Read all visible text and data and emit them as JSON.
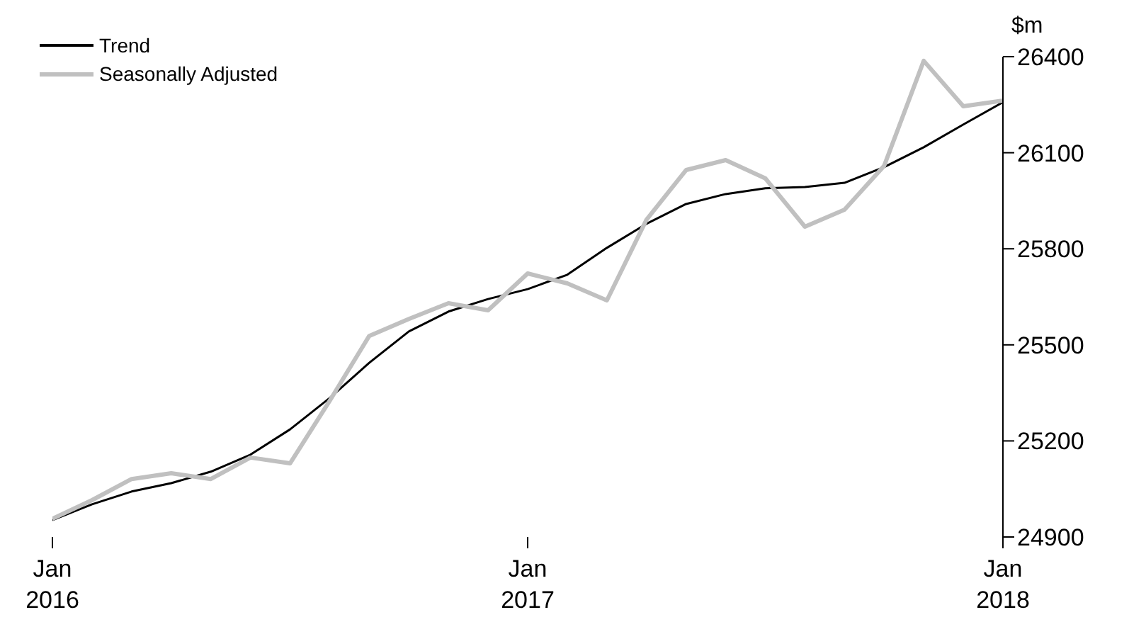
{
  "chart_data": {
    "type": "line",
    "ylabel": "$m",
    "x": [
      "2016-01",
      "2016-02",
      "2016-03",
      "2016-04",
      "2016-05",
      "2016-06",
      "2016-07",
      "2016-08",
      "2016-09",
      "2016-10",
      "2016-11",
      "2016-12",
      "2017-01",
      "2017-02",
      "2017-03",
      "2017-04",
      "2017-05",
      "2017-06",
      "2017-07",
      "2017-08",
      "2017-09",
      "2017-10",
      "2017-11",
      "2017-12",
      "2018-01"
    ],
    "series": [
      {
        "name": "Trend",
        "color": "#000000",
        "values": [
          24953,
          25002,
          25042,
          25068,
          25104,
          25157,
          25236,
          25334,
          25444,
          25542,
          25604,
          25643,
          25674,
          25719,
          25803,
          25878,
          25940,
          25971,
          25989,
          25993,
          26006,
          26055,
          26117,
          26188,
          26258
        ]
      },
      {
        "name": "Seasonally Adjusted",
        "color": "#c0c0c0",
        "values": [
          24957,
          25015,
          25081,
          25099,
          25081,
          25148,
          25130,
          25325,
          25528,
          25581,
          25630,
          25608,
          25723,
          25692,
          25639,
          25891,
          26046,
          26077,
          26020,
          25869,
          25922,
          26059,
          26387,
          26245,
          26263
        ]
      }
    ],
    "xlim": [
      "2016-01",
      "2018-01"
    ],
    "xticks": [
      {
        "value": "2016-01",
        "label": "Jan\n2016"
      },
      {
        "value": "2017-01",
        "label": "Jan\n2017"
      },
      {
        "value": "2018-01",
        "label": "Jan\n2018"
      }
    ],
    "ylim": [
      24900,
      26400
    ],
    "yticks": [
      24900,
      25200,
      25500,
      25800,
      26100,
      26400
    ],
    "grid": false,
    "legend": "top left",
    "marker": "none",
    "line_style": "solid"
  }
}
